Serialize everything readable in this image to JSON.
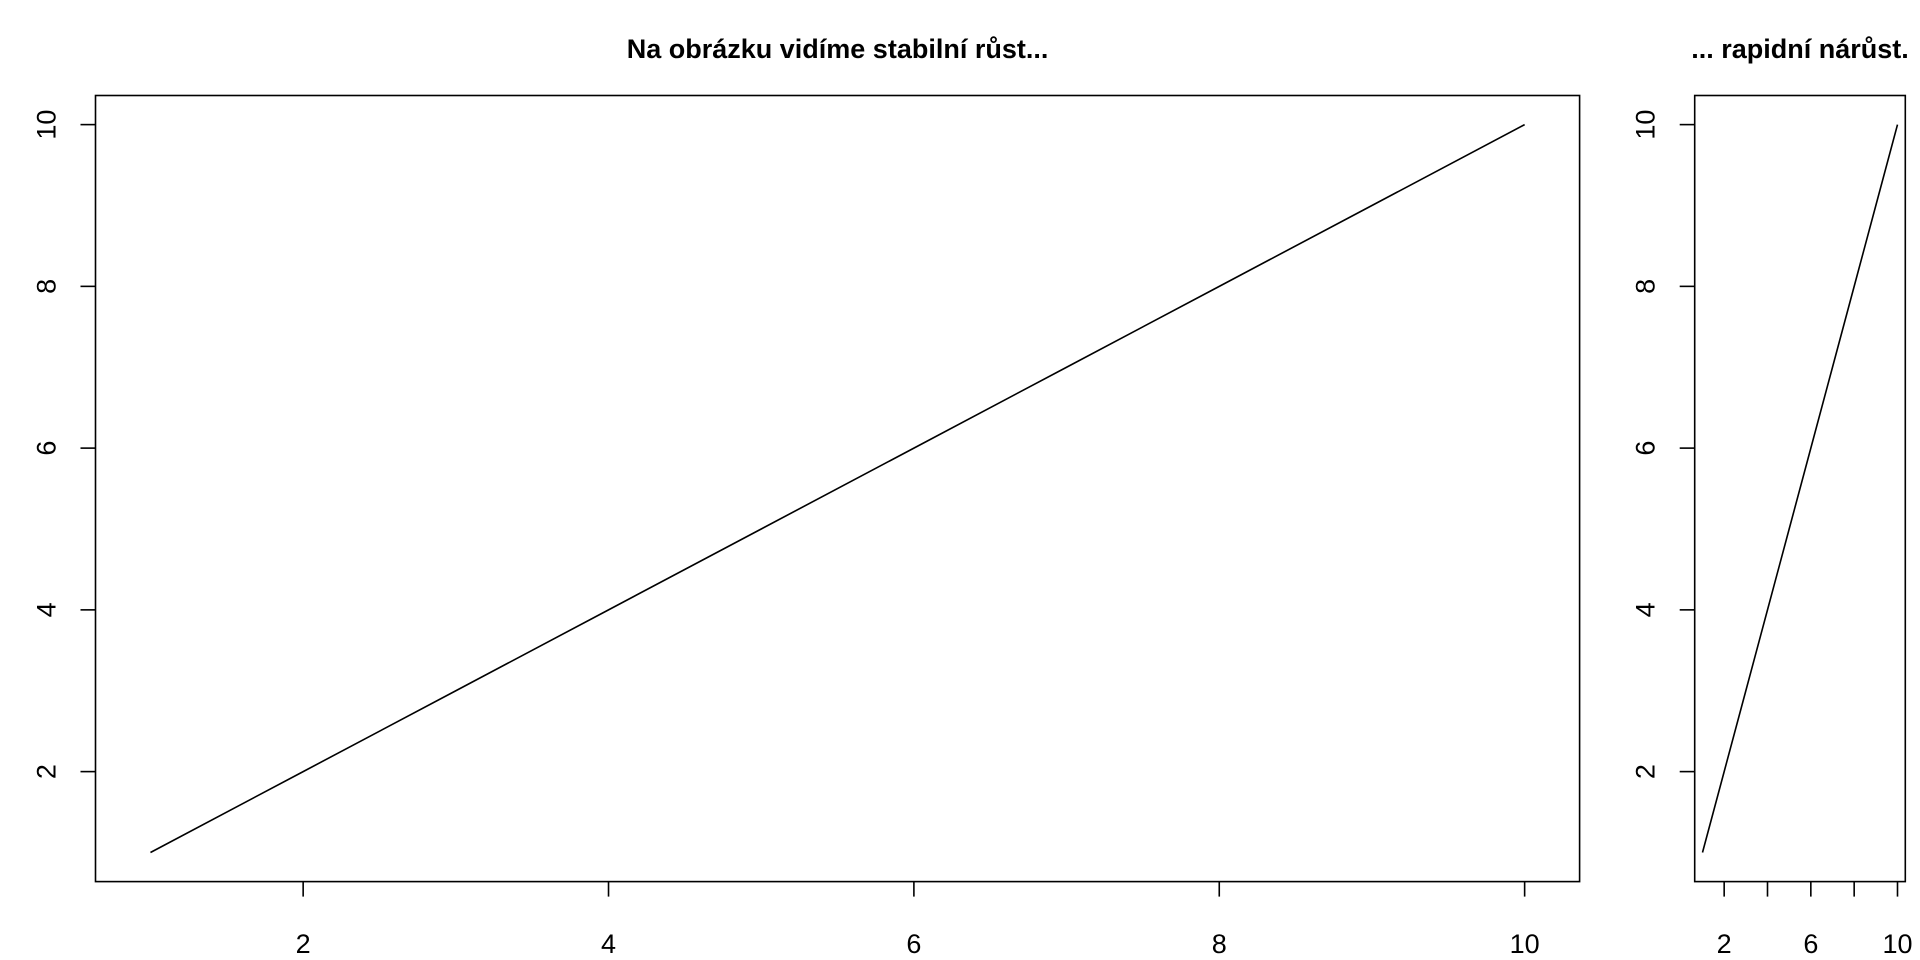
{
  "chart_data": [
    {
      "type": "line",
      "title": "Na obrázku vidíme stabilní růst...",
      "x": [
        1,
        2,
        3,
        4,
        5,
        6,
        7,
        8,
        9,
        10
      ],
      "series": [
        {
          "color": "#000000",
          "values": [
            1,
            2,
            3,
            4,
            5,
            6,
            7,
            8,
            9,
            10
          ]
        }
      ],
      "xlim": [
        0.64,
        10.36
      ],
      "ylim": [
        0.64,
        10.36
      ],
      "xticks": [
        2,
        4,
        6,
        8,
        10
      ],
      "yticks": [
        2,
        4,
        6,
        8,
        10
      ]
    },
    {
      "type": "line",
      "title": "... rapidní nárůst.",
      "x": [
        1,
        2,
        3,
        4,
        5,
        6,
        7,
        8,
        9,
        10
      ],
      "series": [
        {
          "color": "#000000",
          "values": [
            1,
            2,
            3,
            4,
            5,
            6,
            7,
            8,
            9,
            10
          ]
        }
      ],
      "xlim": [
        0.64,
        10.36
      ],
      "ylim": [
        0.64,
        10.36
      ],
      "xticks": [
        2,
        {
          "value": 4,
          "label": null
        },
        6,
        {
          "value": 8,
          "label": null
        },
        10
      ],
      "yticks": [
        2,
        4,
        6,
        8,
        10
      ]
    }
  ]
}
